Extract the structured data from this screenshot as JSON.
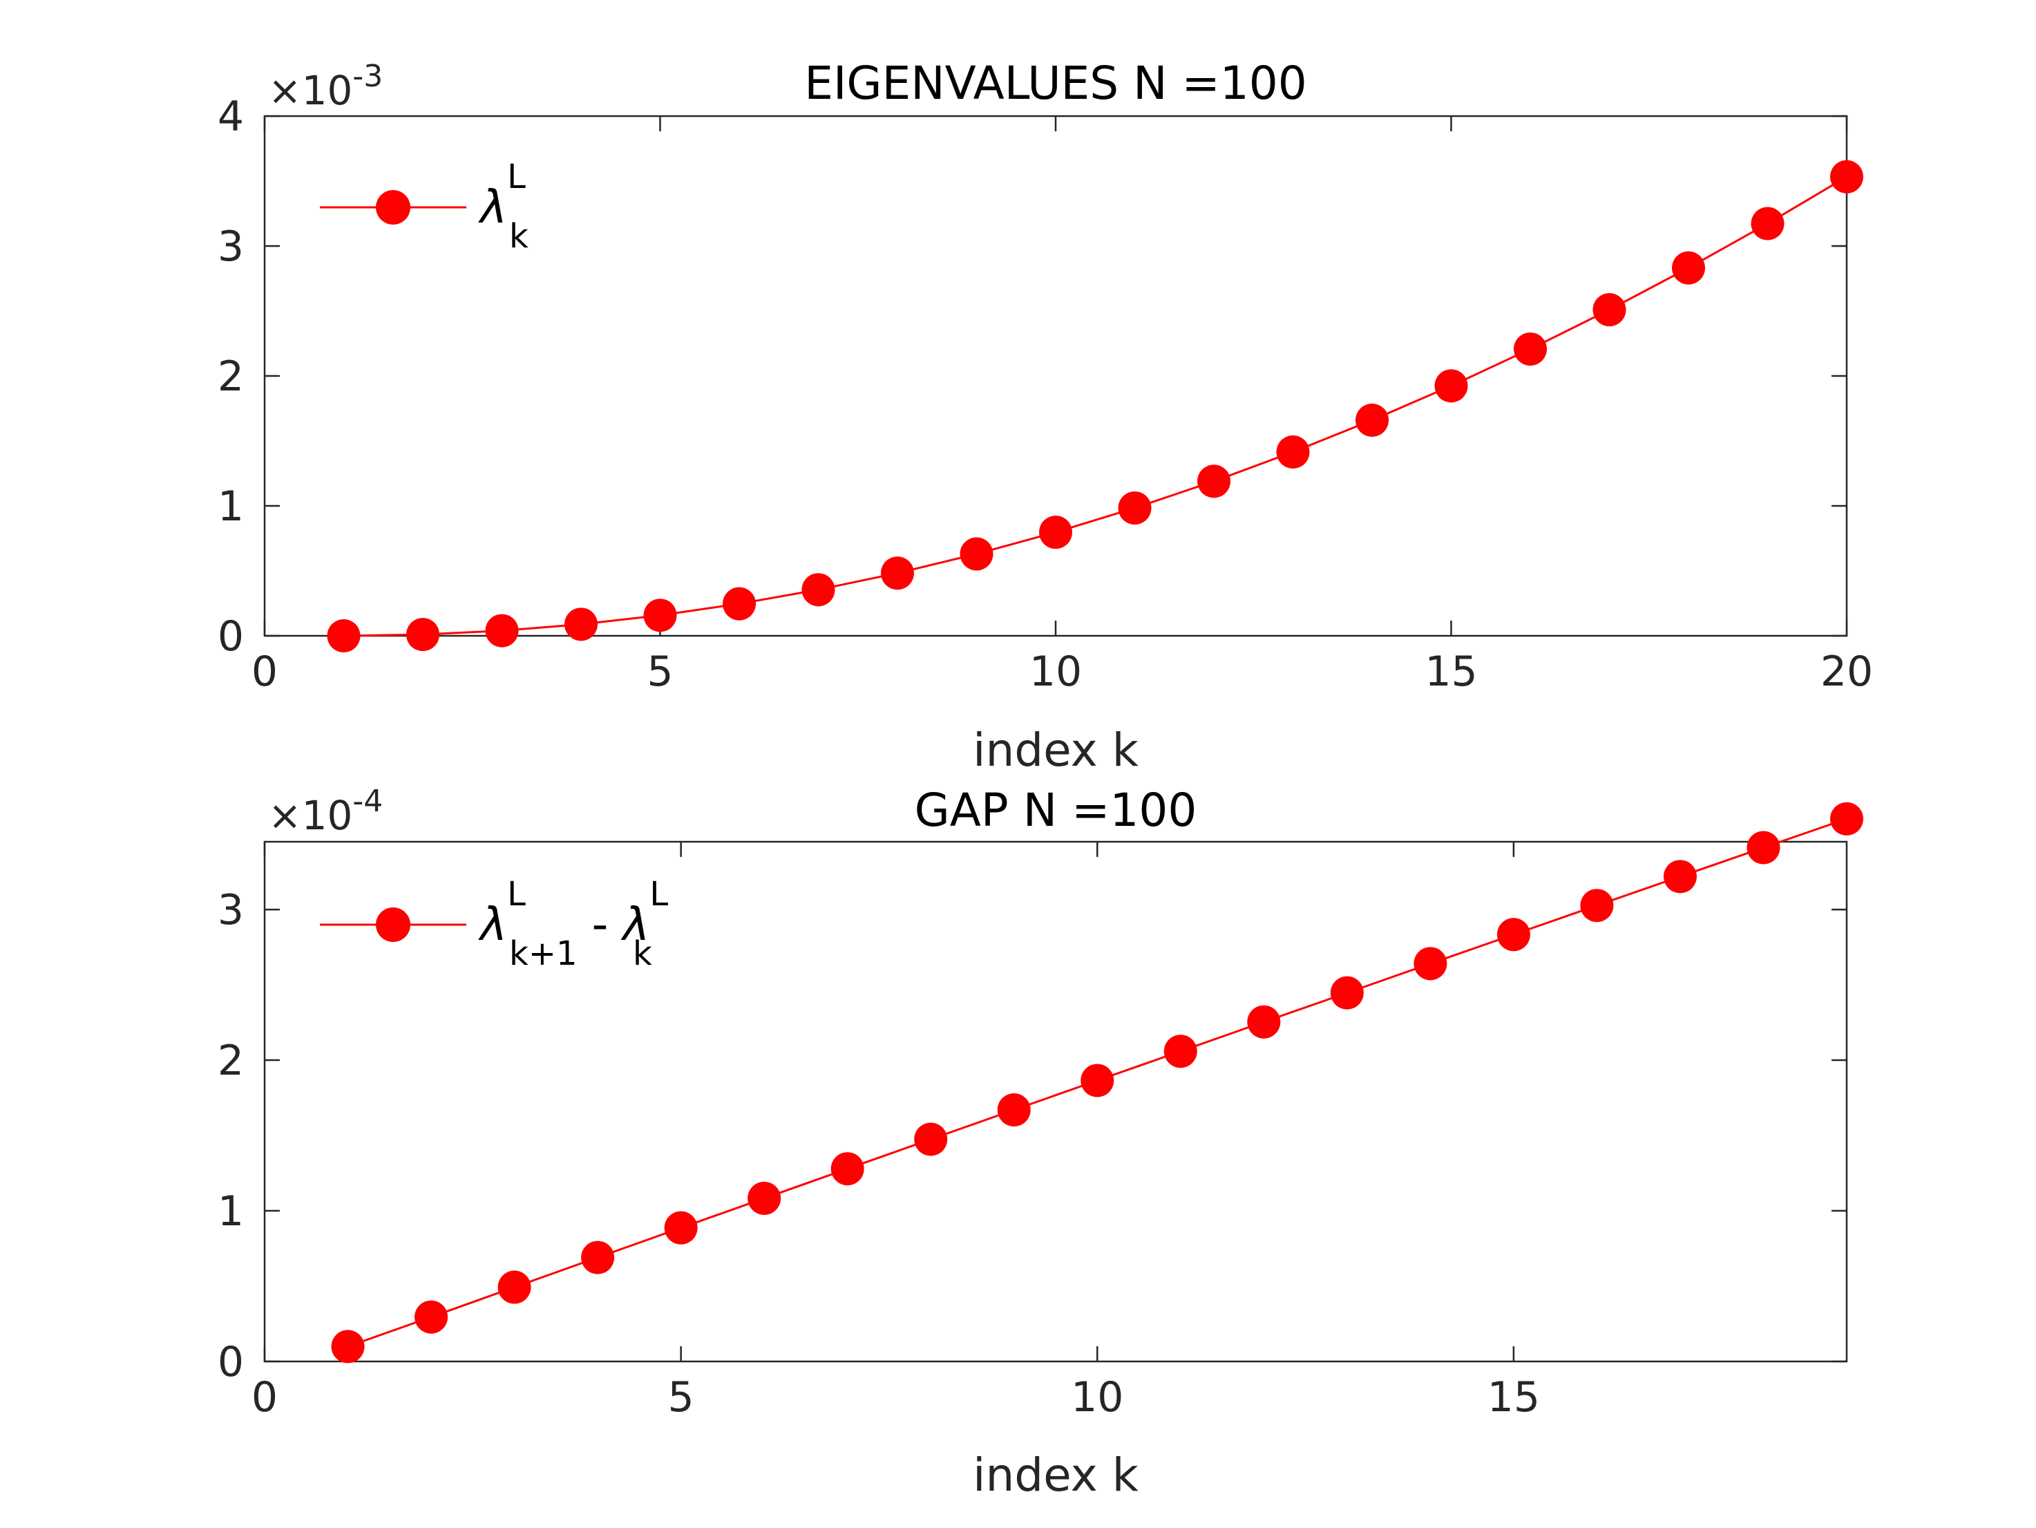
{
  "chart_data": [
    {
      "type": "line",
      "title": "EIGENVALUES N =100",
      "xlabel": "index k",
      "ylabel": "",
      "xlim": [
        0,
        20
      ],
      "ylim": [
        0,
        0.004
      ],
      "xticks": [
        "0",
        "5",
        "10",
        "15",
        "20"
      ],
      "yticks": [
        "0",
        "1",
        "2",
        "3",
        "4"
      ],
      "y_multiplier": {
        "base": "×10",
        "exponent": "-3"
      },
      "grid": false,
      "legend_position": "top-left",
      "legend": {
        "symbol": "λ",
        "superscript": "L",
        "subscript": "k"
      },
      "marker_color": "#ff0000",
      "x": [
        1,
        2,
        3,
        4,
        5,
        6,
        7,
        8,
        9,
        10,
        11,
        12,
        13,
        14,
        15,
        16,
        17,
        18,
        19,
        20
      ],
      "values": [
        0.0,
        9.9e-06,
        3.94e-05,
        8.87e-05,
        0.0001577,
        0.0002464,
        0.0003547,
        0.0004826,
        0.0006301,
        0.0007971,
        0.0009836,
        0.0011895,
        0.0014149,
        0.0016596,
        0.0019237,
        0.0022071,
        0.0025098,
        0.0028317,
        0.0031728,
        0.0035331
      ]
    },
    {
      "type": "line",
      "title": "GAP N =100",
      "xlabel": "index k",
      "ylabel": "",
      "xlim": [
        0,
        19
      ],
      "ylim": [
        0,
        0.000345
      ],
      "xticks": [
        "0",
        "5",
        "10",
        "15"
      ],
      "yticks": [
        "0",
        "1",
        "2",
        "3"
      ],
      "y_multiplier": {
        "base": "×10",
        "exponent": "-4"
      },
      "grid": false,
      "legend_position": "top-left",
      "legend": {
        "symbol": "λ",
        "superscript": "L",
        "subscript": "k+1",
        "minus": " - ",
        "symbol2": "λ",
        "superscript2": "L",
        "subscript2": "k"
      },
      "marker_color": "#ff0000",
      "x": [
        1,
        2,
        3,
        4,
        5,
        6,
        7,
        8,
        9,
        10,
        11,
        12,
        13,
        14,
        15,
        16,
        17,
        18,
        19
      ],
      "values": [
        9.9e-06,
        2.95e-05,
        4.93e-05,
        6.9e-05,
        8.87e-05,
        0.0001083,
        0.0001279,
        0.0001475,
        0.000167,
        0.0001865,
        0.0002059,
        0.0002254,
        0.0002447,
        0.0002641,
        0.0002834,
        0.0003027,
        0.0003219,
        0.0003411,
        0.0003602
      ]
    }
  ]
}
